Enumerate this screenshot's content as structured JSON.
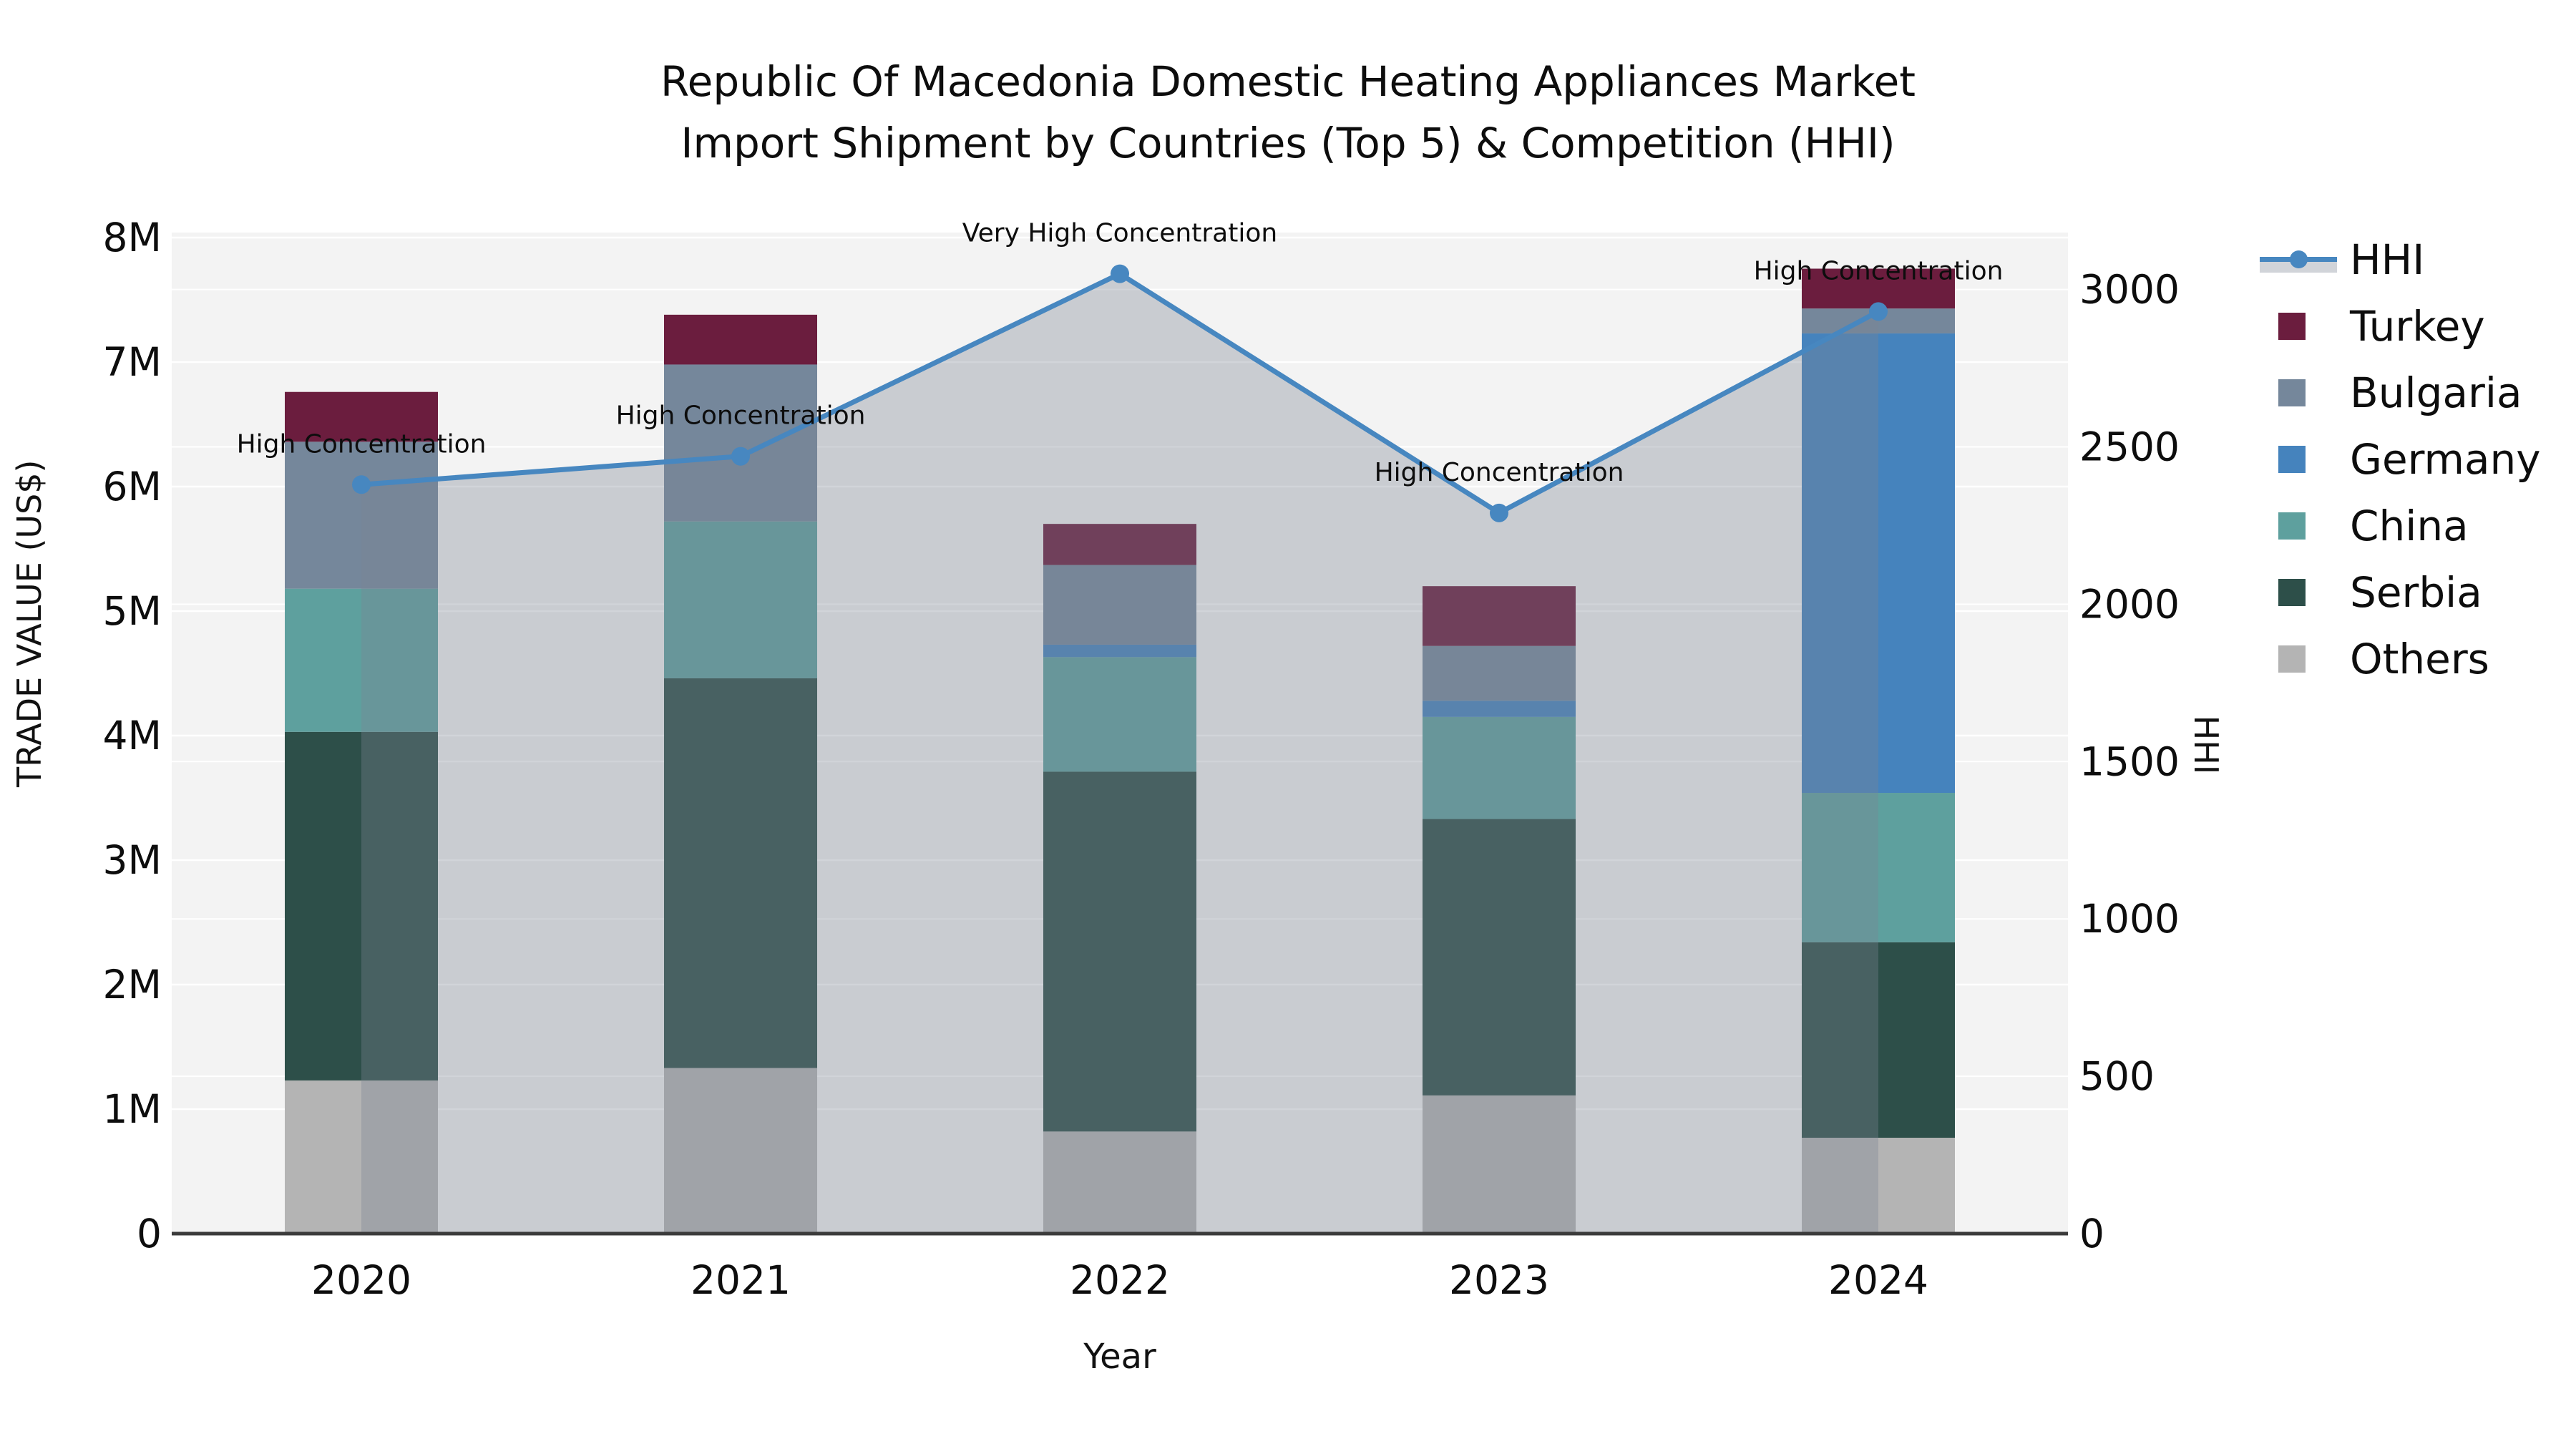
{
  "title": {
    "line1": "Republic Of Macedonia Domestic Heating Appliances Market",
    "line2": "Import Shipment by Countries (Top 5) & Competition (HHI)"
  },
  "colors": {
    "hhi_line": "#4787c0",
    "hhi_area_fill": "rgba(122,132,147,0.35)",
    "plot_background": "#f3f3f3",
    "gridline": "#ffffff",
    "axis_line": "#3b3b3b",
    "turkey": "#6b1d3e",
    "bulgaria": "#75879b",
    "germany": "#4583bd",
    "china": "#5ea09e",
    "serbia": "#2d4f49",
    "others": "#b4b4b4"
  },
  "legend": {
    "items": [
      {
        "label": "HHI",
        "type": "line",
        "color": "#4787c0"
      },
      {
        "label": "Turkey",
        "type": "swatch",
        "color": "#6b1d3e"
      },
      {
        "label": "Bulgaria",
        "type": "swatch",
        "color": "#75879b"
      },
      {
        "label": "Germany",
        "type": "swatch",
        "color": "#4583bd"
      },
      {
        "label": "China",
        "type": "swatch",
        "color": "#5ea09e"
      },
      {
        "label": "Serbia",
        "type": "swatch",
        "color": "#2d4f49"
      },
      {
        "label": "Others",
        "type": "swatch",
        "color": "#b4b4b4"
      }
    ]
  },
  "chart_data": {
    "type": "combo-stacked-bar-line",
    "categories": [
      "2020",
      "2021",
      "2022",
      "2023",
      "2024"
    ],
    "bar_unit": "M US$",
    "bar_series": [
      {
        "name": "Others",
        "color": "#b4b4b4",
        "values": [
          1.23,
          1.33,
          0.82,
          1.11,
          0.77
        ]
      },
      {
        "name": "Serbia",
        "color": "#2d4f49",
        "values": [
          2.8,
          3.13,
          2.89,
          2.22,
          1.57
        ]
      },
      {
        "name": "China",
        "color": "#5ea09e",
        "values": [
          1.15,
          1.26,
          0.92,
          0.82,
          1.2
        ]
      },
      {
        "name": "Germany",
        "color": "#4583bd",
        "values": [
          0.0,
          0.0,
          0.1,
          0.13,
          3.69
        ]
      },
      {
        "name": "Bulgaria",
        "color": "#75879b",
        "values": [
          1.18,
          1.26,
          0.64,
          0.44,
          0.2
        ]
      },
      {
        "name": "Turkey",
        "color": "#6b1d3e",
        "values": [
          0.4,
          0.4,
          0.33,
          0.48,
          0.32
        ]
      }
    ],
    "bar_totals": [
      6.76,
      7.38,
      5.7,
      5.2,
      7.75
    ],
    "line_series": {
      "name": "HHI",
      "color": "#4787c0",
      "area_fill": "rgba(122,132,147,0.35)",
      "values": [
        2380,
        2470,
        3050,
        2290,
        2930
      ]
    },
    "annotations": [
      "High Concentration",
      "High Concentration",
      "Very High Concentration",
      "High Concentration",
      "High Concentration"
    ],
    "y_left": {
      "label": "TRADE VALUE (US$)",
      "ticks": [
        {
          "value": 0,
          "text": "0"
        },
        {
          "value": 1,
          "text": "1M"
        },
        {
          "value": 2,
          "text": "2M"
        },
        {
          "value": 3,
          "text": "3M"
        },
        {
          "value": 4,
          "text": "4M"
        },
        {
          "value": 5,
          "text": "5M"
        },
        {
          "value": 6,
          "text": "6M"
        },
        {
          "value": 7,
          "text": "7M"
        },
        {
          "value": 8,
          "text": "8M"
        }
      ],
      "range_max": 8.04
    },
    "y_right": {
      "label": "HHI",
      "ticks": [
        {
          "value": 0,
          "text": "0"
        },
        {
          "value": 500,
          "text": "500"
        },
        {
          "value": 1000,
          "text": "1000"
        },
        {
          "value": 1500,
          "text": "1500"
        },
        {
          "value": 2000,
          "text": "2000"
        },
        {
          "value": 2500,
          "text": "2500"
        },
        {
          "value": 3000,
          "text": "3000"
        }
      ],
      "range_max": 3181
    },
    "x_axis": {
      "label": "Year"
    },
    "legend_position": "right",
    "grid": true
  }
}
